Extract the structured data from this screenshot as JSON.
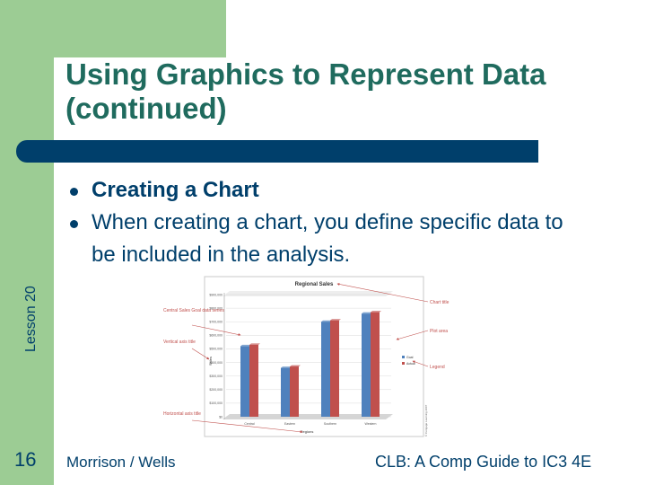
{
  "slide": {
    "title": "Using Graphics to Represent Data (continued)",
    "lesson_label": "Lesson 20",
    "page_number": "16",
    "bullets": [
      {
        "text": "Creating a Chart"
      },
      {
        "text": "When creating a chart, you define specific data to be included in the analysis."
      }
    ],
    "footer_left": "Morrison / Wells",
    "footer_right": "CLB: A Comp Guide to IC3 4E"
  },
  "colors": {
    "accent_green": "#9ccc94",
    "title_teal": "#1f6b5e",
    "navy": "#003f6b",
    "bar_blue": "#4f81bd",
    "bar_red": "#c0504d",
    "callout_red": "#c0504d"
  },
  "figure": {
    "chart_title": "Regional Sales",
    "y_ticks": [
      "$900,000",
      "$800,000",
      "$700,000",
      "$600,000",
      "$500,000",
      "$400,000",
      "$300,000",
      "$200,000",
      "$100,000",
      "$0"
    ],
    "categories": [
      "Central",
      "Eastern",
      "Southern",
      "Western"
    ],
    "x_axis_title": "Regions",
    "y_axis_title": "Sales",
    "legend": [
      "Goal",
      "Actual"
    ],
    "values": {
      "goal": [
        520000,
        360000,
        700000,
        760000
      ],
      "actual": [
        530000,
        370000,
        710000,
        770000
      ]
    },
    "callouts": {
      "chart_title": "Chart title",
      "plot_area": "Plot area",
      "legend": "Legend",
      "data_series": "Central Sales Goal data series",
      "vertical_axis": "Vertical axis title",
      "horizontal_axis": "Horizontal axis title"
    },
    "copyright": "© Cengage Learning 2007"
  }
}
